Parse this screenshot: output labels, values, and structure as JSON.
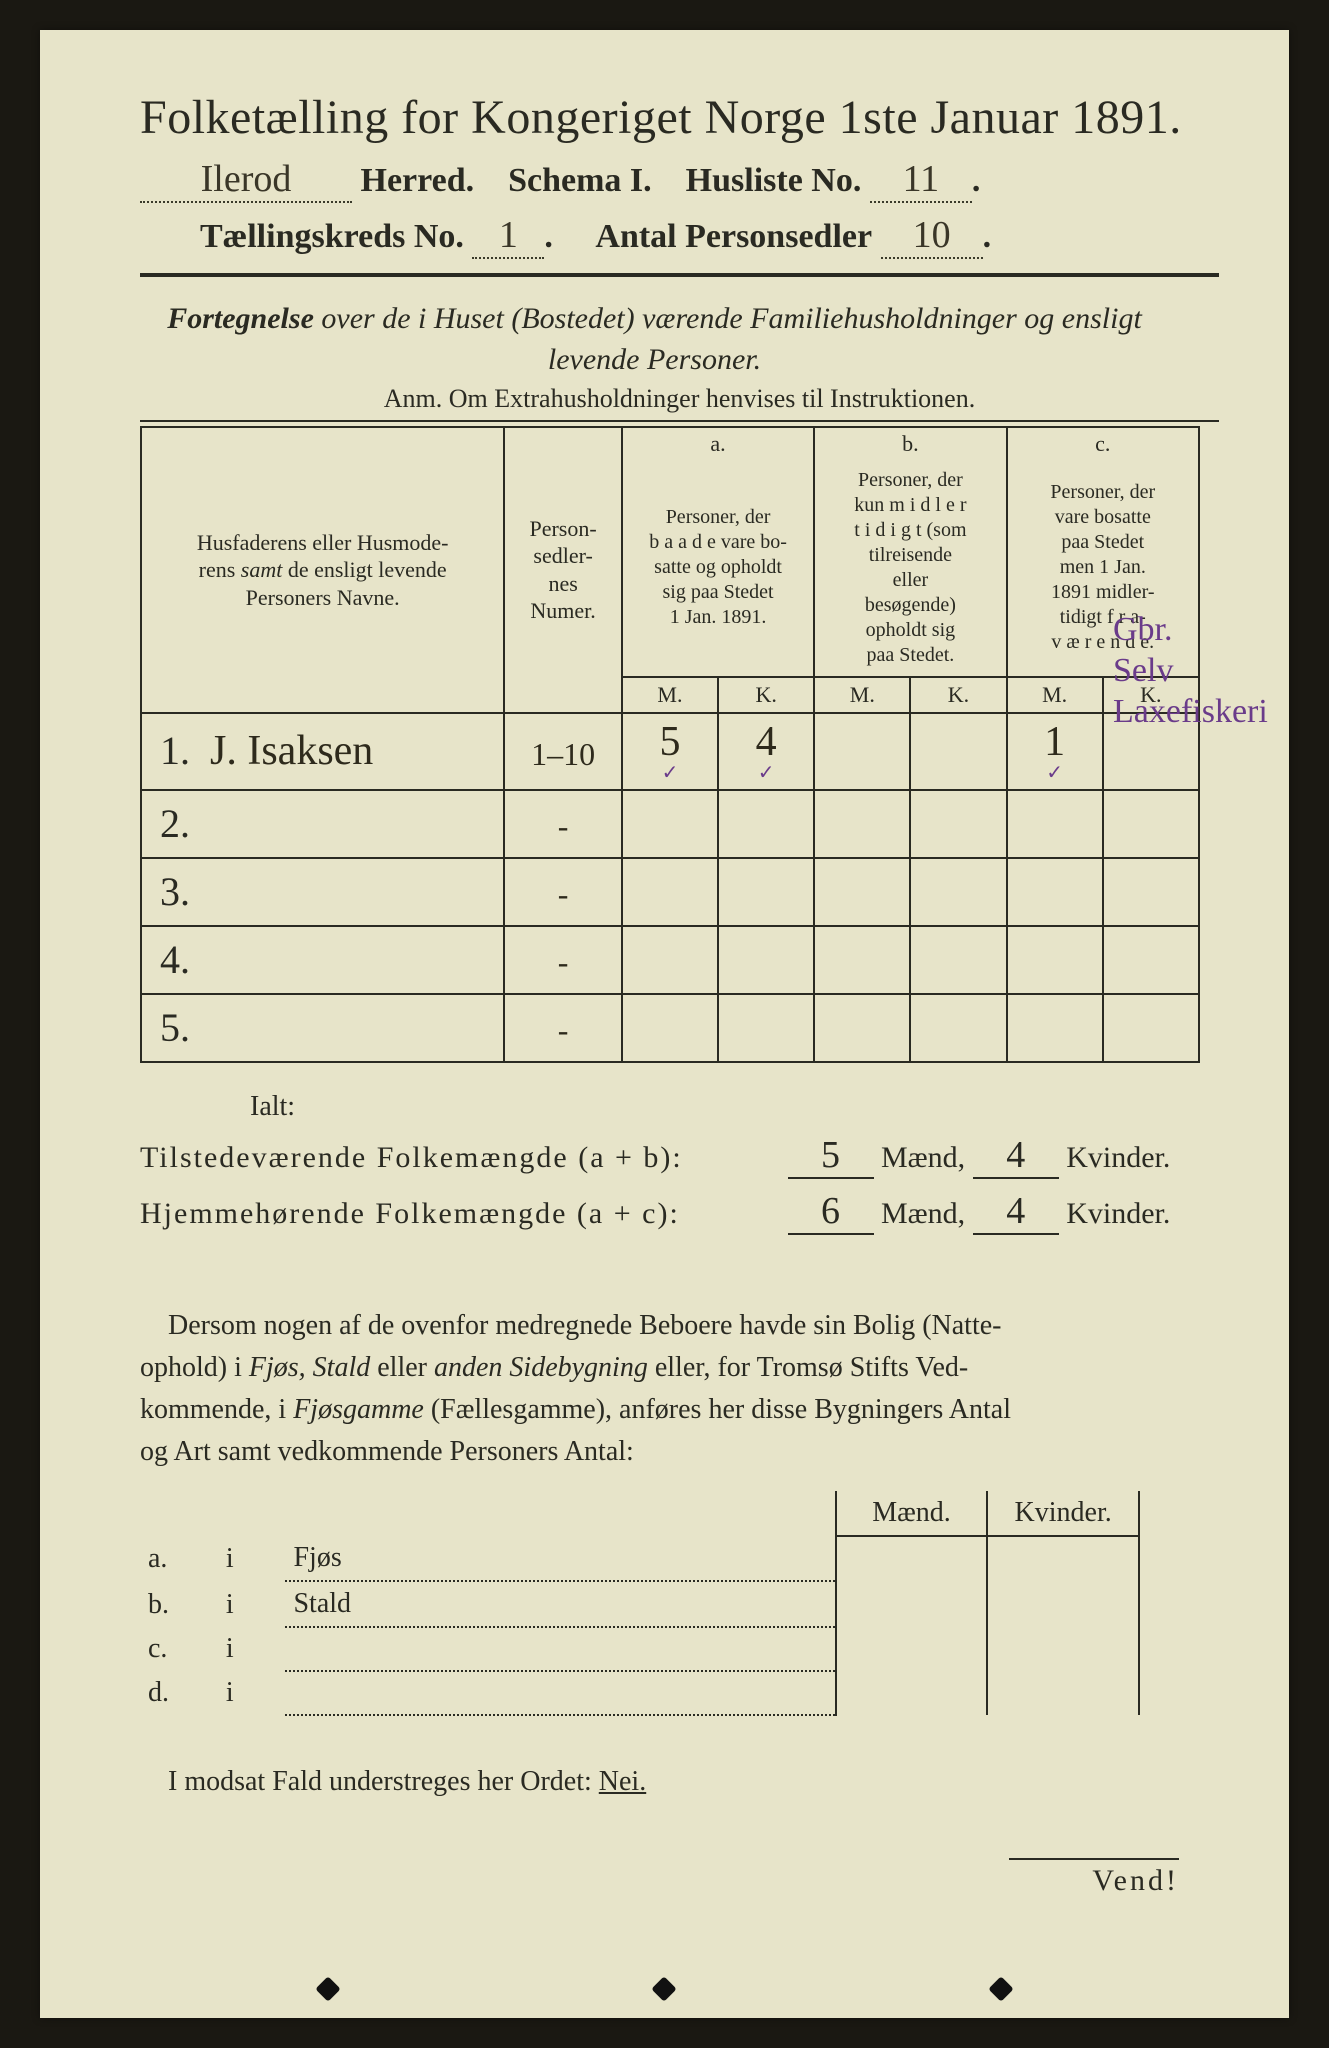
{
  "title": "Folketælling for Kongeriget Norge 1ste Januar 1891.",
  "herred_value": "Ilerod",
  "herred_label": "Herred.",
  "schema_label": "Schema I.",
  "husliste_label": "Husliste No.",
  "husliste_value": "11",
  "kreds_label": "Tællingskreds No.",
  "kreds_value": "1",
  "antal_label": "Antal Personsedler",
  "antal_value": "10",
  "forteg_line1": "Fortegnelse over de i Huset (Bostedet) værende Familiehusholdninger og ensligt",
  "forteg_line2": "levende Personer.",
  "anm": "Anm.  Om Extrahusholdninger henvises til Instruktionen.",
  "table": {
    "head_name": "Husfaderens eller Husmoderens samt de ensligt levende Personers Navne.",
    "head_num": "Person-sedler-nes Numer.",
    "head_a_top": "a.",
    "head_a": "Personer, der baade vare bosatte og opholdt sig paa Stedet 1 Jan. 1891.",
    "head_b_top": "b.",
    "head_b": "Personer, der kun midler tidigt (som tilreisende eller besøgende) opholdt sig paa Stedet.",
    "head_c_top": "c.",
    "head_c": "Personer, der vare bosatte paa Stedet men 1 Jan. 1891 midler-tidigt fra-værende.",
    "mk_m": "M.",
    "mk_k": "K.",
    "rows": [
      {
        "n": "1.",
        "name": "J. Isaksen",
        "num": "1–10",
        "a_m": "5",
        "a_k": "4",
        "b_m": "",
        "b_k": "",
        "c_m": "1",
        "c_k": ""
      },
      {
        "n": "2.",
        "name": "",
        "num": "-",
        "a_m": "",
        "a_k": "",
        "b_m": "",
        "b_k": "",
        "c_m": "",
        "c_k": ""
      },
      {
        "n": "3.",
        "name": "",
        "num": "-",
        "a_m": "",
        "a_k": "",
        "b_m": "",
        "b_k": "",
        "c_m": "",
        "c_k": ""
      },
      {
        "n": "4.",
        "name": "",
        "num": "-",
        "a_m": "",
        "a_k": "",
        "b_m": "",
        "b_k": "",
        "c_m": "",
        "c_k": ""
      },
      {
        "n": "5.",
        "name": "",
        "num": "-",
        "a_m": "",
        "a_k": "",
        "b_m": "",
        "b_k": "",
        "c_m": "",
        "c_k": ""
      }
    ]
  },
  "side_note": {
    "l1": "Gbr.",
    "l2": "Selv",
    "l3": "Laxefiskeri"
  },
  "ialt": {
    "label": "Ialt:",
    "row1_label": "Tilstedeværende Folkemængde (a + b):",
    "row1_m": "5",
    "row1_k": "4",
    "row2_label": "Hjemmehørende Folkemængde (a + c):",
    "row2_m": "6",
    "row2_k": "4",
    "maend": "Mænd,",
    "kvinder": "Kvinder."
  },
  "para": "Dersom nogen af de ovenfor medregnede Beboere havde sin Bolig (Natte-ophold) i Fjøs, Stald eller anden Sidebygning eller, for Tromsø Stifts Ved-kommende, i Fjøsgamme (Fællesgamme), anføres her disse Bygningers Antal og Art samt vedkommende Personers Antal:",
  "side_table": {
    "hd_m": "Mænd.",
    "hd_k": "Kvinder.",
    "rows": [
      {
        "a": "a.",
        "i": "i",
        "t": "Fjøs"
      },
      {
        "a": "b.",
        "i": "i",
        "t": "Stald"
      },
      {
        "a": "c.",
        "i": "i",
        "t": ""
      },
      {
        "a": "d.",
        "i": "i",
        "t": ""
      }
    ]
  },
  "nei": "I modsat Fald understreges her Ordet:",
  "nei_word": "Nei.",
  "vend": "Vend!",
  "colors": {
    "paper": "#e7e4c9",
    "ink": "#2a2a22",
    "handwriting": "#2e2a1c",
    "purple_note": "#6a3b8a",
    "background": "#1a1812"
  }
}
